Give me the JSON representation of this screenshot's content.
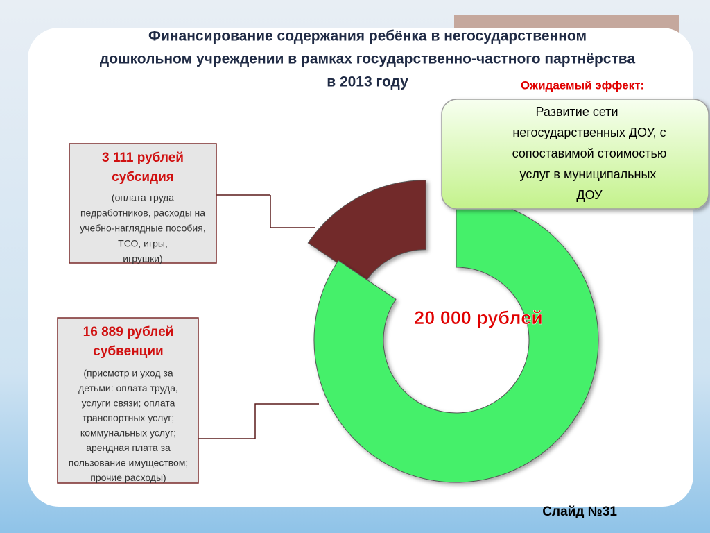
{
  "chart_data": {
    "type": "donut",
    "title": [
      "Финансирование содержания ребёнка в негосударственном",
      "дошкольном учреждении в рамках государственно-частного партнёрства",
      "в 2013 году"
    ],
    "categories": [
      "субсидия",
      "субвенции"
    ],
    "values": [
      3111,
      16889
    ],
    "value_labels": [
      "3 111 рублей",
      "16 889 рублей"
    ],
    "colors": [
      "#722a2a",
      "#44f06a"
    ],
    "descriptions": [
      [
        "(оплата труда",
        "педработников, расходы на",
        "учебно-наглядные пособия,",
        "ТСО, игры,",
        "игрушки)"
      ],
      [
        "(присмотр и уход за",
        "детьми: оплата труда,",
        "услуги связи; оплата",
        "транспортных услуг;",
        "коммунальных услуг;",
        "арендная плата за",
        "пользование имуществом;",
        "прочие расходы)"
      ]
    ],
    "center_label": "20 000 рублей"
  },
  "effect": {
    "heading": "Ожидаемый эффект:",
    "text": [
      "Развитие сети",
      "негосударственных ДОУ, с",
      "сопоставимой стоимостью",
      "услуг в муниципальных",
      "ДОУ"
    ]
  },
  "footer": "Слайд №31"
}
